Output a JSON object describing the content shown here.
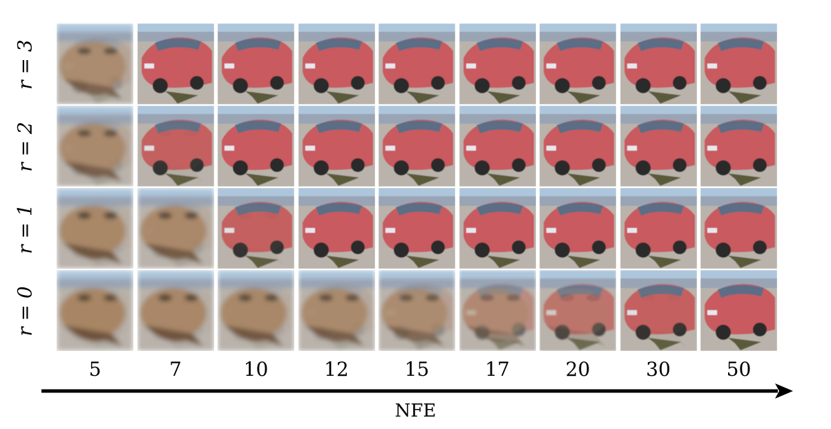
{
  "rows": [
    {
      "label": "r = 3",
      "progress": [
        0.25,
        1,
        1,
        1,
        1,
        1,
        1,
        1,
        1
      ]
    },
    {
      "label": "r = 2",
      "progress": [
        0.2,
        0.95,
        1,
        1,
        1,
        1,
        1,
        1,
        1
      ]
    },
    {
      "label": "r = 1",
      "progress": [
        0.1,
        0.15,
        0.95,
        1,
        1,
        1,
        1,
        1,
        1
      ]
    },
    {
      "label": "r = 0",
      "progress": [
        0.05,
        0.08,
        0.12,
        0.18,
        0.3,
        0.55,
        0.8,
        0.95,
        1
      ]
    }
  ],
  "columns": [
    "5",
    "7",
    "10",
    "12",
    "15",
    "17",
    "20",
    "30",
    "50"
  ],
  "axis": {
    "title": "NFE"
  },
  "colors": {
    "car": "#c95a5e",
    "frog": "#a88462",
    "sky": "#aec6dc",
    "road": "#b9b3ab",
    "shadow": "#5a5a3a"
  }
}
